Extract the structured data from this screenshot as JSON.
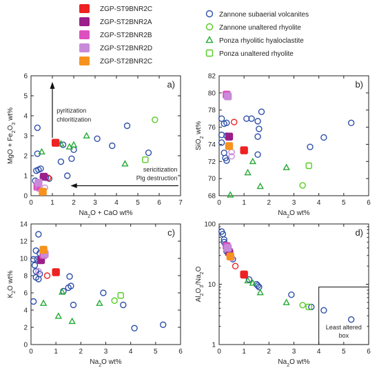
{
  "legend": {
    "columns": [
      [
        {
          "label": "ZGP-ST9BNR2C",
          "color": "#ee2222",
          "marker": "filled-square"
        },
        {
          "label": "ZGP-ST2BNR2A",
          "color": "#9b1e8a",
          "marker": "filled-square"
        },
        {
          "label": "ZGP-ST2BNR2B",
          "color": "#dd4fbf",
          "marker": "filled-square"
        },
        {
          "label": "ZGP-ST2BNR2D",
          "color": "#c98ad9",
          "marker": "filled-square"
        },
        {
          "label": "ZGP-ST2BNR2C",
          "color": "#f7921e",
          "marker": "filled-square"
        }
      ],
      [
        {
          "label": "Zannone subaerial volcanites",
          "color": "#2d4fa8",
          "marker": "open-circle"
        },
        {
          "label": "Zannone unaltered rhyolite",
          "color": "#55cc22",
          "marker": "open-circle"
        },
        {
          "label": "Ponza  rhyolitic hyaloclastite",
          "color": "#22aa33",
          "marker": "open-triangle"
        },
        {
          "label": "Ponza  unaltered rhyolite",
          "color": "#55cc22",
          "marker": "open-square"
        }
      ]
    ]
  },
  "chart_data": [
    {
      "panel": "a)",
      "type": "scatter",
      "xlabel": "Na2O + CaO wt%",
      "ylabel": "MgO + Fe2O3 wt%",
      "xlim": [
        0,
        7
      ],
      "ylim": [
        0,
        6
      ],
      "xticks": [
        0,
        1,
        2,
        3,
        4,
        5,
        6,
        7
      ],
      "yticks": [
        0,
        1,
        2,
        3,
        4,
        5,
        6
      ],
      "annotations": {
        "up_line1": "pyritization",
        "up_line2": "chloritization",
        "left_line1": "sericitization",
        "left_line2": "Plg destruction"
      },
      "series": [
        {
          "name": "Zannone subaerial volcanites",
          "style": "blue-circle",
          "points": [
            [
              0.3,
              3.4
            ],
            [
              0.3,
              2.1
            ],
            [
              0.25,
              1.25
            ],
            [
              0.35,
              1.3
            ],
            [
              0.45,
              1.35
            ],
            [
              0.2,
              0.75
            ],
            [
              0.55,
              0.95
            ],
            [
              0.7,
              0.9
            ],
            [
              0.85,
              0.85
            ],
            [
              1.4,
              1.7
            ],
            [
              1.5,
              2.55
            ],
            [
              1.7,
              1.0
            ],
            [
              1.9,
              1.85
            ],
            [
              2.0,
              2.3
            ],
            [
              3.1,
              2.85
            ],
            [
              3.8,
              2.5
            ],
            [
              4.5,
              3.5
            ],
            [
              5.5,
              2.15
            ]
          ]
        },
        {
          "name": "Zannone unaltered rhyolite",
          "style": "green-circle",
          "points": [
            [
              5.8,
              3.8
            ]
          ]
        },
        {
          "name": "Ponza  rhyolitic hyaloclastite",
          "style": "green-triangle",
          "points": [
            [
              0.5,
              2.2
            ],
            [
              1.4,
              2.6
            ],
            [
              1.8,
              2.45
            ],
            [
              2.0,
              2.55
            ],
            [
              2.6,
              3.0
            ],
            [
              4.4,
              1.6
            ]
          ]
        },
        {
          "name": "Ponza  unaltered rhyolite",
          "style": "green-square",
          "points": [
            [
              5.35,
              1.8
            ]
          ]
        },
        {
          "name": "ZGP-ST9BNR2C",
          "style": "red-square",
          "points": [
            [
              1.15,
              2.65
            ]
          ]
        },
        {
          "name": "ZGP-ST9BNR2C",
          "style": "red-circle",
          "points": [
            [
              0.8,
              0.9
            ]
          ]
        },
        {
          "name": "ZGP-ST2BNR2A",
          "style": "purple-square",
          "points": [
            [
              0.6,
              0.95
            ]
          ]
        },
        {
          "name": "ZGP-ST2BNR2B",
          "style": "pink-square",
          "points": [
            [
              0.3,
              0.45
            ]
          ]
        },
        {
          "name": "ZGP-ST2BNR2D",
          "style": "lilac-square",
          "points": [
            [
              0.35,
              0.65
            ]
          ]
        },
        {
          "name": "ZGP-ST2BNR2D",
          "style": "lilac-circle",
          "points": [
            [
              0.35,
              0.35
            ],
            [
              0.65,
              0.4
            ]
          ]
        },
        {
          "name": "ZGP-ST2BNR2C",
          "style": "orange-square",
          "points": [
            [
              0.55,
              0.2
            ]
          ]
        }
      ]
    },
    {
      "panel": "b)",
      "type": "scatter",
      "xlabel": "Na2O wt%",
      "ylabel": "SiO2 wt%",
      "xlim": [
        0,
        6
      ],
      "ylim": [
        68,
        82
      ],
      "xticks": [
        0,
        1,
        2,
        3,
        4,
        5,
        6
      ],
      "yticks": [
        68,
        70,
        72,
        74,
        76,
        78,
        80,
        82
      ],
      "series": [
        {
          "name": "Zannone subaerial volcanites",
          "style": "blue-circle",
          "points": [
            [
              0.1,
              77.0
            ],
            [
              0.2,
              76.4
            ],
            [
              0.3,
              76.5
            ],
            [
              0.1,
              75.1
            ],
            [
              0.3,
              75.0
            ],
            [
              0.1,
              74.2
            ],
            [
              0.2,
              73.0
            ],
            [
              0.25,
              72.4
            ],
            [
              0.3,
              72.1
            ],
            [
              1.1,
              77.0
            ],
            [
              1.3,
              77.0
            ],
            [
              1.55,
              76.7
            ],
            [
              1.7,
              77.8
            ],
            [
              1.6,
              75.8
            ],
            [
              1.55,
              74.9
            ],
            [
              1.55,
              72.8
            ],
            [
              3.65,
              73.7
            ],
            [
              4.2,
              74.8
            ],
            [
              5.3,
              76.5
            ]
          ]
        },
        {
          "name": "Zannone unaltered rhyolite",
          "style": "green-circle",
          "points": [
            [
              3.35,
              69.2
            ]
          ]
        },
        {
          "name": "Ponza  rhyolitic hyaloclastite",
          "style": "green-triangle",
          "points": [
            [
              0.45,
              68.1
            ],
            [
              1.15,
              70.7
            ],
            [
              1.35,
              72.0
            ],
            [
              1.65,
              69.1
            ],
            [
              2.7,
              71.3
            ]
          ]
        },
        {
          "name": "Ponza  unaltered rhyolite",
          "style": "green-square",
          "points": [
            [
              3.6,
              71.5
            ]
          ]
        },
        {
          "name": "ZGP-ST9BNR2C",
          "style": "red-square",
          "points": [
            [
              1.0,
              73.3
            ]
          ]
        },
        {
          "name": "ZGP-ST9BNR2C",
          "style": "red-circle",
          "points": [
            [
              0.6,
              76.6
            ]
          ]
        },
        {
          "name": "ZGP-ST2BNR2A",
          "style": "purple-square",
          "points": [
            [
              0.4,
              74.9
            ]
          ]
        },
        {
          "name": "ZGP-ST2BNR2B",
          "style": "pink-square",
          "points": [
            [
              0.3,
              79.8
            ]
          ]
        },
        {
          "name": "ZGP-ST2BNR2D",
          "style": "lilac-square",
          "points": [
            [
              0.35,
              79.6
            ]
          ]
        },
        {
          "name": "ZGP-ST2BNR2D",
          "style": "lilac-circle",
          "points": [
            [
              0.5,
              73.1
            ],
            [
              0.5,
              72.6
            ]
          ]
        },
        {
          "name": "ZGP-ST2BNR2C",
          "style": "orange-square",
          "points": [
            [
              0.4,
              73.8
            ]
          ]
        }
      ]
    },
    {
      "panel": "c)",
      "type": "scatter",
      "xlabel": "Na2O wt%",
      "ylabel": "K2O wt%",
      "xlim": [
        0,
        6
      ],
      "ylim": [
        0,
        14
      ],
      "xticks": [
        0,
        1,
        2,
        3,
        4,
        5,
        6
      ],
      "yticks": [
        0,
        2,
        4,
        6,
        8,
        10,
        12,
        14
      ],
      "series": [
        {
          "name": "Zannone subaerial volcanites",
          "style": "blue-circle",
          "points": [
            [
              0.3,
              12.8
            ],
            [
              0.2,
              10.9
            ],
            [
              0.35,
              10.6
            ],
            [
              0.1,
              9.9
            ],
            [
              0.25,
              9.9
            ],
            [
              0.15,
              9.2
            ],
            [
              0.2,
              8.5
            ],
            [
              0.35,
              8.2
            ],
            [
              0.2,
              7.8
            ],
            [
              0.3,
              7.6
            ],
            [
              0.1,
              5.0
            ],
            [
              1.3,
              6.2
            ],
            [
              1.5,
              6.6
            ],
            [
              1.6,
              6.8
            ],
            [
              1.55,
              7.9
            ],
            [
              1.7,
              4.6
            ],
            [
              2.9,
              6.0
            ],
            [
              3.7,
              4.6
            ],
            [
              4.15,
              1.9
            ],
            [
              5.3,
              2.3
            ]
          ]
        },
        {
          "name": "Zannone unaltered rhyolite",
          "style": "green-circle",
          "points": [
            [
              3.35,
              5.1
            ]
          ]
        },
        {
          "name": "Ponza  rhyolitic hyaloclastite",
          "style": "green-triangle",
          "points": [
            [
              0.5,
              4.8
            ],
            [
              1.1,
              3.3
            ],
            [
              1.25,
              6.1
            ],
            [
              1.65,
              2.7
            ],
            [
              2.75,
              4.8
            ]
          ]
        },
        {
          "name": "Ponza  unaltered rhyolite",
          "style": "green-square",
          "points": [
            [
              3.6,
              5.7
            ]
          ]
        },
        {
          "name": "ZGP-ST9BNR2C",
          "style": "red-square",
          "points": [
            [
              1.0,
              8.4
            ]
          ]
        },
        {
          "name": "ZGP-ST9BNR2C",
          "style": "red-circle",
          "points": [
            [
              0.65,
              8.0
            ]
          ]
        },
        {
          "name": "ZGP-ST2BNR2A",
          "style": "purple-square",
          "points": [
            [
              0.4,
              9.8
            ]
          ]
        },
        {
          "name": "ZGP-ST2BNR2B",
          "style": "pink-square",
          "points": [
            [
              0.5,
              10.4
            ]
          ]
        },
        {
          "name": "ZGP-ST2BNR2D",
          "style": "lilac-square",
          "points": [
            [
              0.55,
              10.5
            ]
          ]
        },
        {
          "name": "ZGP-ST2BNR2D",
          "style": "lilac-circle",
          "points": [
            [
              0.3,
              8.5
            ]
          ]
        },
        {
          "name": "ZGP-ST2BNR2C",
          "style": "orange-square",
          "points": [
            [
              0.5,
              11.0
            ]
          ]
        }
      ]
    },
    {
      "panel": "d)",
      "type": "scatter",
      "xlabel": "Na2O wt%",
      "ylabel": "Al2O3/Na2O",
      "xlim": [
        0,
        6
      ],
      "ylim": [
        1,
        100
      ],
      "yscale": "log",
      "xticks": [
        0,
        1,
        2,
        3,
        4,
        5,
        6
      ],
      "yticks": [
        1,
        10,
        100
      ],
      "box_label_line1": "Least altered",
      "box_label_line2": "box",
      "box_xlim": [
        4,
        6
      ],
      "box_ylim": [
        1,
        9
      ],
      "series": [
        {
          "name": "Zannone subaerial volcanites",
          "style": "blue-circle",
          "points": [
            [
              0.1,
              75
            ],
            [
              0.15,
              68
            ],
            [
              0.2,
              55
            ],
            [
              0.2,
              50
            ],
            [
              0.25,
              46
            ],
            [
              0.3,
              40
            ],
            [
              0.3,
              35
            ],
            [
              0.45,
              32
            ],
            [
              0.55,
              26
            ],
            [
              1.0,
              14
            ],
            [
              1.2,
              12
            ],
            [
              1.5,
              10
            ],
            [
              1.55,
              9.5
            ],
            [
              1.6,
              9.0
            ],
            [
              2.9,
              6.7
            ],
            [
              3.7,
              4.2
            ],
            [
              4.2,
              3.7
            ],
            [
              5.3,
              2.6
            ]
          ]
        },
        {
          "name": "Zannone unaltered rhyolite",
          "style": "green-circle",
          "points": [
            [
              3.35,
              4.5
            ]
          ]
        },
        {
          "name": "Ponza  rhyolitic hyaloclastite",
          "style": "green-triangle",
          "points": [
            [
              0.45,
              38
            ],
            [
              1.15,
              11.5
            ],
            [
              1.35,
              10.5
            ],
            [
              1.65,
              7.3
            ],
            [
              2.7,
              5.0
            ]
          ]
        },
        {
          "name": "Ponza  unaltered rhyolite",
          "style": "green-square",
          "points": [
            [
              3.6,
              4.2
            ]
          ]
        },
        {
          "name": "ZGP-ST9BNR2C",
          "style": "red-square",
          "points": [
            [
              1.0,
              14.5
            ]
          ]
        },
        {
          "name": "ZGP-ST9BNR2C",
          "style": "red-circle",
          "points": [
            [
              0.65,
              20
            ]
          ]
        },
        {
          "name": "ZGP-ST2BNR2A",
          "style": "purple-square",
          "points": [
            [
              0.4,
              34
            ]
          ]
        },
        {
          "name": "ZGP-ST2BNR2B",
          "style": "pink-square",
          "points": [
            [
              0.3,
              43
            ]
          ]
        },
        {
          "name": "ZGP-ST2BNR2D",
          "style": "lilac-square",
          "points": [
            [
              0.35,
              40
            ]
          ]
        },
        {
          "name": "ZGP-ST2BNR2D",
          "style": "lilac-circle",
          "points": [
            [
              0.5,
              27
            ]
          ]
        },
        {
          "name": "ZGP-ST2BNR2C",
          "style": "orange-square",
          "points": [
            [
              0.45,
              29
            ]
          ]
        }
      ]
    }
  ],
  "styles": {
    "blue-circle": {
      "shape": "circle",
      "fill": "none",
      "stroke": "#2d4fa8"
    },
    "green-circle": {
      "shape": "circle",
      "fill": "none",
      "stroke": "#55cc22"
    },
    "green-triangle": {
      "shape": "triangle",
      "fill": "none",
      "stroke": "#22aa33"
    },
    "green-square": {
      "shape": "square",
      "fill": "none",
      "stroke": "#55cc22"
    },
    "red-square": {
      "shape": "square",
      "fill": "#ee2222",
      "stroke": "#ee2222"
    },
    "red-circle": {
      "shape": "circle",
      "fill": "none",
      "stroke": "#ee2222"
    },
    "purple-square": {
      "shape": "square",
      "fill": "#9b1e8a",
      "stroke": "#9b1e8a"
    },
    "pink-square": {
      "shape": "square",
      "fill": "#dd4fbf",
      "stroke": "#dd4fbf"
    },
    "lilac-square": {
      "shape": "square",
      "fill": "#c98ad9",
      "stroke": "#c98ad9"
    },
    "lilac-circle": {
      "shape": "circle",
      "fill": "none",
      "stroke": "#c98ad9"
    },
    "orange-square": {
      "shape": "square",
      "fill": "#f7921e",
      "stroke": "#f7921e"
    }
  }
}
